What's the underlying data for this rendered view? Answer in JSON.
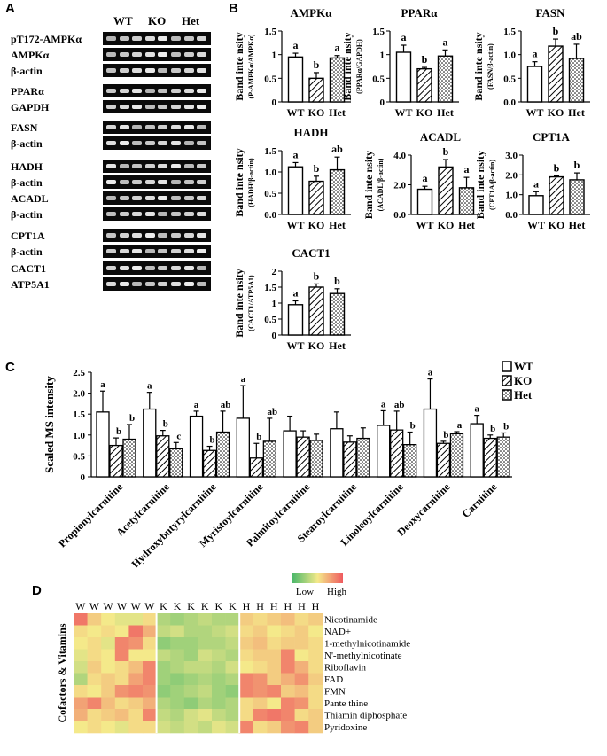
{
  "panels": {
    "a": "A",
    "b": "B",
    "c": "C",
    "d": "D"
  },
  "panel_a": {
    "groups": [
      "WT",
      "KO",
      "Het"
    ],
    "blots": [
      {
        "label": "pT172-AMPKα",
        "band_count": 8
      },
      {
        "label": "AMPKα",
        "band_count": 8
      },
      {
        "label": "β-actin",
        "band_count": 8
      },
      {
        "label": "PPARα",
        "band_count": 8
      },
      {
        "label": "GAPDH",
        "band_count": 8
      },
      {
        "label": "FASN",
        "band_count": 8
      },
      {
        "label": "β-actin",
        "band_count": 8
      },
      {
        "label": "HADH",
        "band_count": 8
      },
      {
        "label": "β-actin",
        "band_count": 8
      },
      {
        "label": "ACADL",
        "band_count": 8
      },
      {
        "label": "β-actin",
        "band_count": 8
      },
      {
        "label": "CPT1A",
        "band_count": 8
      },
      {
        "label": "β-actin",
        "band_count": 8
      },
      {
        "label": "CACT1",
        "band_count": 8
      },
      {
        "label": "ATP5A1",
        "band_count": 8
      }
    ]
  },
  "chart_data": [
    {
      "type": "bar",
      "title": "AMPKα",
      "ylabel": "Band inte nsity",
      "ylabel2": "(P-AMPKα/AMPKα)",
      "categories": [
        "WT",
        "KO",
        "Het"
      ],
      "values": [
        0.95,
        0.5,
        0.93
      ],
      "errors": [
        0.08,
        0.12,
        0.05
      ],
      "letters": [
        "a",
        "b",
        "a"
      ],
      "ylim": [
        0,
        1.5
      ],
      "yticks": [
        "0",
        "0.5",
        "1",
        "1.5"
      ]
    },
    {
      "type": "bar",
      "title": "PPARα",
      "ylabel": "Band inte nsity",
      "ylabel2": "(PPARα/GAPDH)",
      "categories": [
        "WT",
        "KO",
        "Het"
      ],
      "values": [
        1.05,
        0.7,
        0.97
      ],
      "errors": [
        0.15,
        0.03,
        0.13
      ],
      "letters": [
        "a",
        "b",
        "a"
      ],
      "ylim": [
        0,
        1.5
      ],
      "yticks": [
        "0",
        "0.5",
        "1",
        "1.5"
      ]
    },
    {
      "type": "bar",
      "title": "FASN",
      "ylabel": "Band inte nsity",
      "ylabel2": "(FASN/β-actin)",
      "categories": [
        "WT",
        "KO",
        "Het"
      ],
      "values": [
        0.75,
        1.18,
        0.92
      ],
      "errors": [
        0.1,
        0.15,
        0.3
      ],
      "letters": [
        "a",
        "b",
        "ab"
      ],
      "ylim": [
        0,
        1.5
      ],
      "yticks": [
        "0.0",
        "0.5",
        "1.0",
        "1.5"
      ]
    },
    {
      "type": "bar",
      "title": "HADH",
      "ylabel": "Band inte nsity",
      "ylabel2": "(HADH/β-actin)",
      "categories": [
        "WT",
        "KO",
        "Het"
      ],
      "values": [
        1.12,
        0.78,
        1.05
      ],
      "errors": [
        0.1,
        0.12,
        0.3
      ],
      "letters": [
        "a",
        "b",
        "ab"
      ],
      "ylim": [
        0,
        1.5
      ],
      "yticks": [
        "0.0",
        "0.5",
        "1.0",
        "1.5"
      ]
    },
    {
      "type": "bar",
      "title": "ACADL",
      "ylabel": "Band inte nsity",
      "ylabel2": "(ACADL/β-actin)",
      "categories": [
        "WT",
        "KO",
        "Het"
      ],
      "values": [
        1.7,
        3.2,
        1.8
      ],
      "errors": [
        0.2,
        0.5,
        0.7
      ],
      "letters": [
        "a",
        "b",
        "a"
      ],
      "ylim": [
        0,
        4
      ],
      "yticks": [
        "0.0",
        "2.0",
        "4.0"
      ]
    },
    {
      "type": "bar",
      "title": "CPT1A",
      "ylabel": "Band inte nsity",
      "ylabel2": "(CPT1A/β-actin)",
      "categories": [
        "WT",
        "KO",
        "Het"
      ],
      "values": [
        0.95,
        1.9,
        1.75
      ],
      "errors": [
        0.2,
        0.05,
        0.35
      ],
      "letters": [
        "a",
        "b",
        "b"
      ],
      "ylim": [
        0,
        3
      ],
      "yticks": [
        "0.0",
        "1.0",
        "2.0",
        "3.0"
      ]
    },
    {
      "type": "bar",
      "title": "CACT1",
      "ylabel": "Band inte nsity",
      "ylabel2": "(CACT1/ATP5A1)",
      "categories": [
        "WT",
        "KO",
        "Het"
      ],
      "values": [
        0.95,
        1.5,
        1.3
      ],
      "errors": [
        0.12,
        0.1,
        0.15
      ],
      "letters": [
        "a",
        "b",
        "b"
      ],
      "ylim": [
        0,
        2
      ],
      "yticks": [
        "0",
        "0.5",
        "1",
        "1.5",
        "2"
      ]
    },
    {
      "type": "bar",
      "title": "",
      "ylabel": "Scaled MS intensity",
      "ylim": [
        0,
        2.5
      ],
      "yticks": [
        "0",
        "0.5",
        "1.0",
        "1.5",
        "2.0",
        "2.5"
      ],
      "categories": [
        "Propionylcarnitine",
        "Acetylcarnitine",
        "Hydroxybutyrylcarnitine",
        "Myristoylcarnitine",
        "Palmitoylcarnitine",
        "Stearoylcarnitine",
        "Linoleoylcarnitine",
        "Deoxycarnitine",
        "Carnitine"
      ],
      "legend": [
        "WT",
        "KO",
        "Het"
      ],
      "series": [
        {
          "name": "WT",
          "values": [
            1.55,
            1.62,
            1.45,
            1.4,
            1.1,
            1.15,
            1.23,
            1.62,
            1.27
          ],
          "errors": [
            0.5,
            0.4,
            0.12,
            0.78,
            0.35,
            0.4,
            0.35,
            0.72,
            0.2
          ],
          "letters": [
            "a",
            "a",
            "a",
            "a",
            "",
            "",
            "a",
            "a",
            "a"
          ]
        },
        {
          "name": "KO",
          "values": [
            0.75,
            0.98,
            0.63,
            0.45,
            0.95,
            0.83,
            1.12,
            0.8,
            0.92
          ],
          "errors": [
            0.18,
            0.13,
            0.1,
            0.35,
            0.15,
            0.15,
            0.45,
            0.05,
            0.08
          ],
          "letters": [
            "b",
            "b",
            "b",
            "b",
            "",
            "",
            "ab",
            "b",
            "b"
          ]
        },
        {
          "name": "Het",
          "values": [
            0.9,
            0.67,
            1.07,
            0.85,
            0.87,
            0.92,
            0.77,
            1.03,
            0.95
          ],
          "errors": [
            0.35,
            0.15,
            0.5,
            0.55,
            0.15,
            0.25,
            0.3,
            0.05,
            0.1
          ],
          "letters": [
            "b",
            "c",
            "ab",
            "ab",
            "",
            "",
            "b",
            "a",
            "b"
          ]
        }
      ]
    },
    {
      "type": "heatmap",
      "ylabel": "Cofactors & Vitamins",
      "scale_low": "Low",
      "scale_high": "High",
      "column_headers": [
        "W",
        "W",
        "W",
        "W",
        "W",
        "W",
        "K",
        "K",
        "K",
        "K",
        "K",
        "K",
        "H",
        "H",
        "H",
        "H",
        "H",
        "H"
      ],
      "rows": [
        "Nicotinamide",
        "NAD+",
        "1-methylnicotinamide",
        "N'-methylnicotinate",
        "Riboflavin",
        "FAD",
        "FMN",
        "Pante thine",
        "Thiamin diphosphate",
        "Pyridoxine"
      ],
      "values": [
        [
          0.9,
          0.6,
          0.5,
          0.45,
          0.45,
          0.55,
          0.3,
          0.25,
          0.3,
          0.35,
          0.3,
          0.3,
          0.6,
          0.55,
          0.6,
          0.65,
          0.55,
          0.6
        ],
        [
          0.55,
          0.5,
          0.55,
          0.5,
          0.9,
          0.7,
          0.35,
          0.4,
          0.3,
          0.3,
          0.35,
          0.4,
          0.55,
          0.6,
          0.5,
          0.55,
          0.6,
          0.5
        ],
        [
          0.5,
          0.55,
          0.45,
          0.85,
          0.8,
          0.55,
          0.2,
          0.25,
          0.25,
          0.3,
          0.3,
          0.35,
          0.6,
          0.65,
          0.55,
          0.6,
          0.6,
          0.55
        ],
        [
          0.45,
          0.55,
          0.5,
          0.85,
          0.5,
          0.5,
          0.35,
          0.3,
          0.25,
          0.4,
          0.35,
          0.3,
          0.55,
          0.6,
          0.6,
          0.85,
          0.5,
          0.55
        ],
        [
          0.4,
          0.6,
          0.5,
          0.55,
          0.65,
          0.85,
          0.25,
          0.3,
          0.35,
          0.35,
          0.3,
          0.4,
          0.5,
          0.55,
          0.6,
          0.85,
          0.7,
          0.55
        ],
        [
          0.3,
          0.55,
          0.6,
          0.55,
          0.75,
          0.85,
          0.25,
          0.2,
          0.25,
          0.3,
          0.25,
          0.3,
          0.85,
          0.8,
          0.6,
          0.7,
          0.8,
          0.6
        ],
        [
          0.55,
          0.5,
          0.6,
          0.8,
          0.85,
          0.8,
          0.2,
          0.25,
          0.3,
          0.35,
          0.25,
          0.2,
          0.85,
          0.8,
          0.85,
          0.6,
          0.65,
          0.55
        ],
        [
          0.75,
          0.85,
          0.65,
          0.55,
          0.6,
          0.7,
          0.3,
          0.25,
          0.2,
          0.3,
          0.25,
          0.3,
          0.55,
          0.6,
          0.5,
          0.85,
          0.8,
          0.55
        ],
        [
          0.7,
          0.55,
          0.6,
          0.65,
          0.55,
          0.85,
          0.35,
          0.3,
          0.4,
          0.45,
          0.35,
          0.3,
          0.55,
          0.85,
          0.9,
          0.85,
          0.55,
          0.6
        ],
        [
          0.5,
          0.55,
          0.5,
          0.45,
          0.55,
          0.55,
          0.4,
          0.35,
          0.4,
          0.35,
          0.45,
          0.4,
          0.85,
          0.55,
          0.6,
          0.8,
          0.85,
          0.6
        ]
      ]
    }
  ]
}
